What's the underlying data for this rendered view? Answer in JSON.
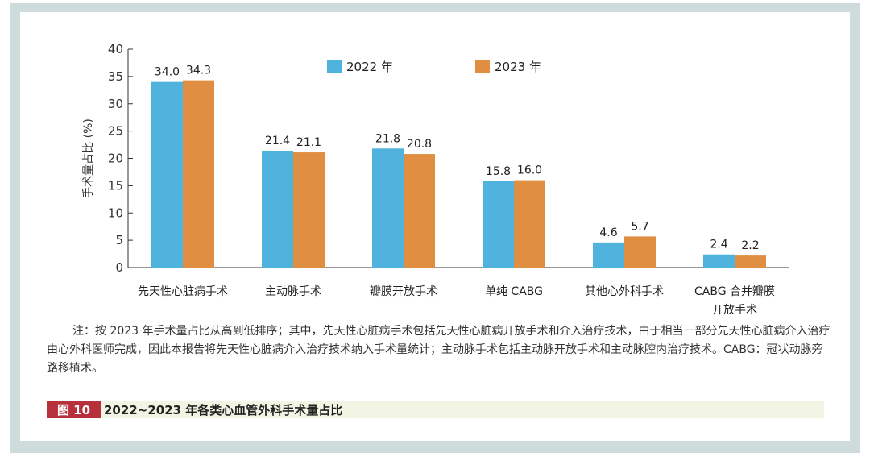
{
  "chart_data": {
    "type": "bar",
    "ylabel": "手术量占比 (%)",
    "ylim": [
      0,
      40
    ],
    "yticks": [
      0,
      5,
      10,
      15,
      20,
      25,
      30,
      35,
      40
    ],
    "categories": [
      "先天性心脏病手术",
      "主动脉手术",
      "瓣膜开放手术",
      "单纯 CABG",
      "其他心外科手术",
      "CABG 合并瓣膜\n开放手术"
    ],
    "series": [
      {
        "name": "2022 年",
        "color": "#4fb3dd",
        "values": [
          34.0,
          21.4,
          21.8,
          15.8,
          4.6,
          2.4
        ]
      },
      {
        "name": "2023 年",
        "color": "#e08f42",
        "values": [
          34.3,
          21.1,
          20.8,
          16.0,
          5.7,
          2.2
        ]
      }
    ],
    "legend": "top",
    "grid": false
  },
  "note": "注：按 2023 年手术量占比从高到低排序；其中，先天性心脏病手术包括先天性心脏病开放手术和介入治疗技术，由于相当一部分先天性心脏病介入治疗由心外科医师完成，因此本报告将先天性心脏病介入治疗技术纳入手术量统计；主动脉手术包括主动脉开放手术和主动脉腔内治疗技术。CABG：冠状动脉旁路移植术。",
  "caption": {
    "number": "图 10",
    "title": "2022~2023 年各类心血管外科手术量占比"
  }
}
